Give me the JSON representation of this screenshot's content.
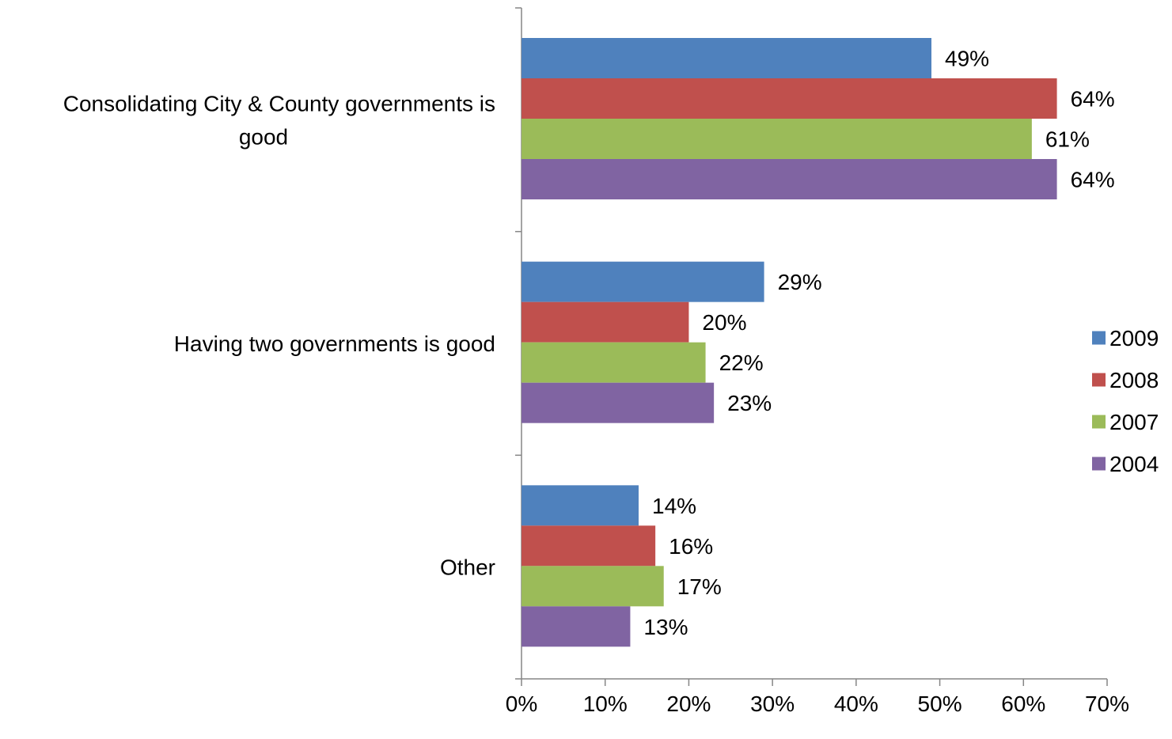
{
  "chart_data": {
    "type": "bar",
    "orientation": "horizontal",
    "categories": [
      [
        "Consolidating City & County governments is",
        "good"
      ],
      [
        "Having two governments is good"
      ],
      [
        "Other"
      ]
    ],
    "series": [
      {
        "name": "2009",
        "color": "#4F81BD",
        "values": [
          49,
          29,
          14
        ],
        "labels": [
          "49%",
          "29%",
          "14%"
        ]
      },
      {
        "name": "2008",
        "color": "#C0504D",
        "values": [
          64,
          20,
          16
        ],
        "labels": [
          "64%",
          "20%",
          "16%"
        ]
      },
      {
        "name": "2007",
        "color": "#9BBB59",
        "values": [
          61,
          22,
          17
        ],
        "labels": [
          "61%",
          "22%",
          "17%"
        ]
      },
      {
        "name": "2004",
        "color": "#8064A2",
        "values": [
          64,
          23,
          13
        ],
        "labels": [
          "64%",
          "23%",
          "13%"
        ]
      }
    ],
    "xlim": [
      0,
      70
    ],
    "xticks": [
      0,
      10,
      20,
      30,
      40,
      50,
      60,
      70
    ],
    "xtick_labels": [
      "0%",
      "10%",
      "20%",
      "30%",
      "40%",
      "50%",
      "60%",
      "70%"
    ],
    "legend": {
      "position": "right",
      "entries": [
        "2009",
        "2008",
        "2007",
        "2004"
      ]
    },
    "grid": false,
    "axis_color": "#868686"
  }
}
